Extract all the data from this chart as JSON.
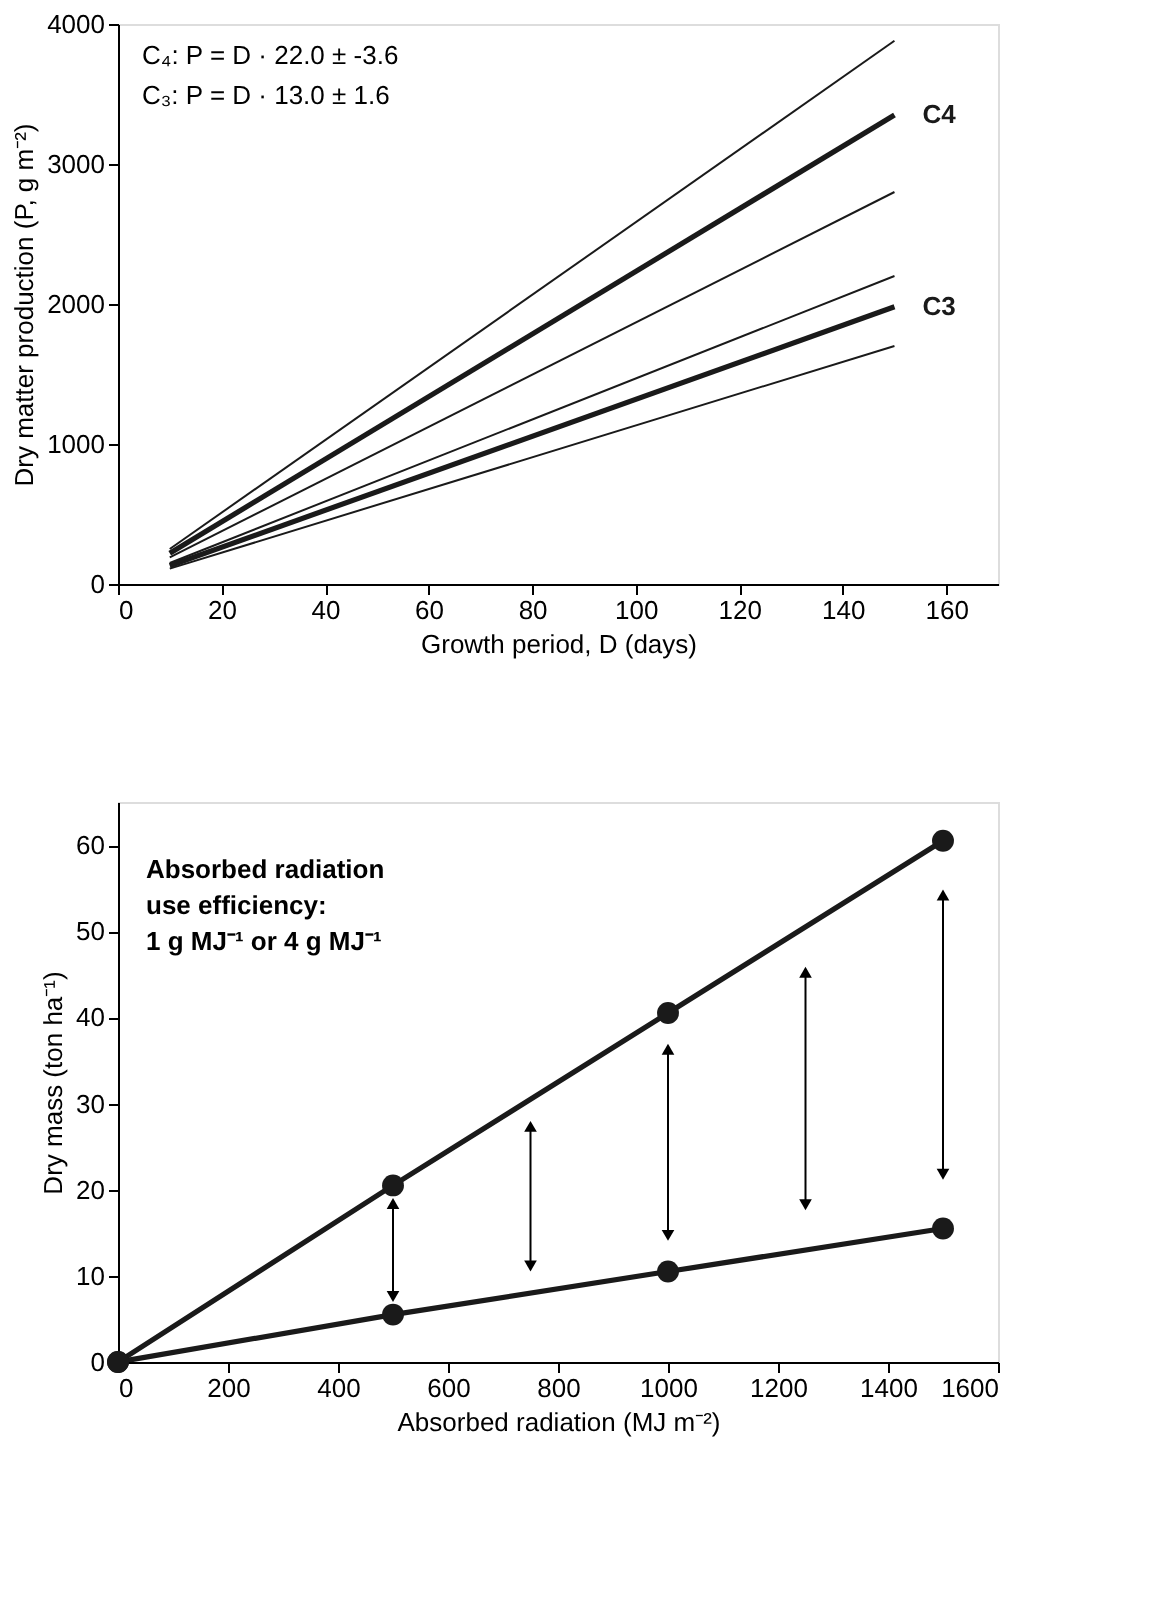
{
  "chart_data": [
    {
      "type": "line",
      "xlabel": "Growth period, D (days)",
      "ylabel": "Dry matter production (P, g m⁻²)",
      "x": [
        10,
        150
      ],
      "xlim": [
        0,
        170
      ],
      "xticks": [
        0,
        20,
        40,
        60,
        80,
        100,
        120,
        140,
        160
      ],
      "ylim": [
        0,
        4000
      ],
      "yticks": [
        0,
        1000,
        2000,
        3000,
        4000
      ],
      "grid": false,
      "legend": false,
      "marker": "none",
      "line_style": "solid",
      "annotations": [
        "C₄: P = D · 22.0 ± -3.6",
        "C₃: P = D · 13.0 ±  1.6"
      ],
      "series": [
        {
          "name": "C4",
          "color": "#1a1a1a",
          "values": [
            220,
            3350
          ]
        },
        {
          "color": "#1a1a1a",
          "values": [
            250,
            3880
          ]
        },
        {
          "color": "#1a1a1a",
          "values": [
            190,
            2800
          ]
        },
        {
          "name": "C3",
          "color": "#1a1a1a",
          "values": [
            130,
            1980
          ]
        },
        {
          "color": "#1a1a1a",
          "values": [
            150,
            2200
          ]
        },
        {
          "color": "#1a1a1a",
          "values": [
            110,
            1700
          ]
        }
      ]
    },
    {
      "type": "line",
      "xlabel": "Absorbed radiation (MJ m⁻²)",
      "ylabel": "Dry mass (ton ha⁻¹)",
      "xlim": [
        0,
        1600
      ],
      "xticks": [
        0,
        200,
        400,
        600,
        800,
        1000,
        1200,
        1400,
        1600
      ],
      "ylim": [
        0,
        65
      ],
      "yticks": [
        0,
        10,
        20,
        30,
        40,
        50,
        60
      ],
      "grid": false,
      "legend": false,
      "marker": "circle",
      "line_style": "solid",
      "annotations": [
        "Absorbed radiation use efficiency: 1 g MJ⁻¹ or 4 g MJ⁻¹"
      ],
      "series": [
        {
          "color": "#1a1a1a",
          "x": [
            0,
            500,
            1000,
            1500
          ],
          "values": [
            0,
            20.5,
            40.5,
            60.5
          ]
        },
        {
          "color": "#1a1a1a",
          "x": [
            0,
            500,
            1000,
            1500
          ],
          "values": [
            0,
            5.5,
            10.5,
            15.5
          ]
        }
      ]
    }
  ]
}
